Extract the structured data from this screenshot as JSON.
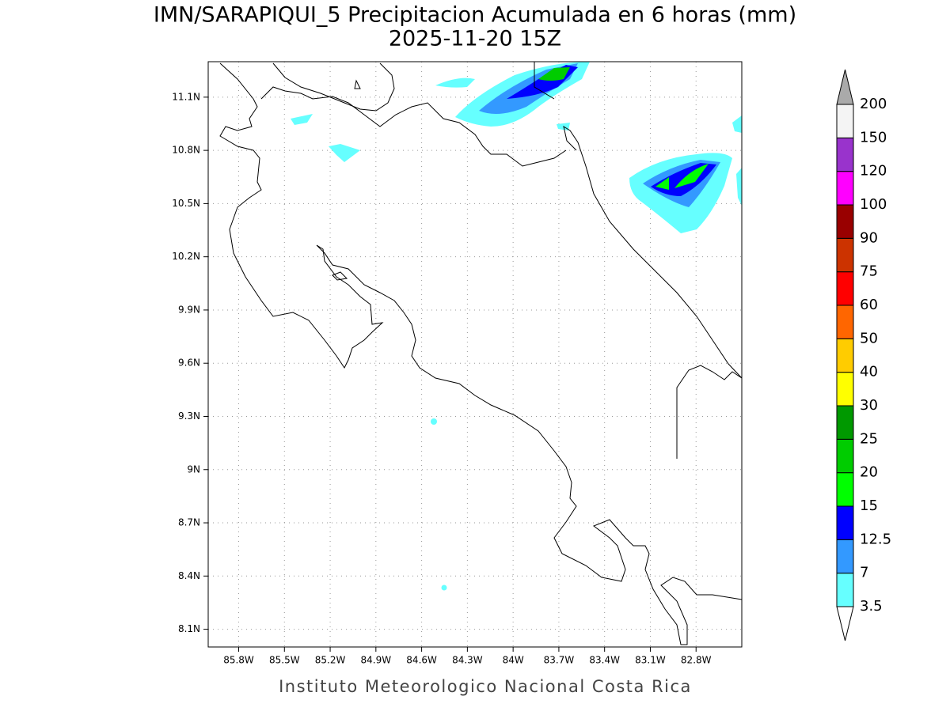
{
  "title": "IMN/SARAPIQUI_5 Precipitacion Acumulada en 6 horas (mm)",
  "subtitle": "2025-11-20 15Z",
  "footer": "Instituto Meteorologico Nacional Costa Rica",
  "map": {
    "xlim": [
      -86.0,
      -82.5
    ],
    "ylim": [
      8.0,
      11.3
    ],
    "xticks": [
      {
        "value": -85.8,
        "label": "85.8W"
      },
      {
        "value": -85.5,
        "label": "85.5W"
      },
      {
        "value": -85.2,
        "label": "85.2W"
      },
      {
        "value": -84.9,
        "label": "84.9W"
      },
      {
        "value": -84.6,
        "label": "84.6W"
      },
      {
        "value": -84.3,
        "label": "84.3W"
      },
      {
        "value": -84.0,
        "label": "84W"
      },
      {
        "value": -83.7,
        "label": "83.7W"
      },
      {
        "value": -83.4,
        "label": "83.4W"
      },
      {
        "value": -83.1,
        "label": "83.1W"
      },
      {
        "value": -82.8,
        "label": "82.8W"
      }
    ],
    "yticks": [
      {
        "value": 8.1,
        "label": "8.1N"
      },
      {
        "value": 8.4,
        "label": "8.4N"
      },
      {
        "value": 8.7,
        "label": "8.7N"
      },
      {
        "value": 9.0,
        "label": "9N"
      },
      {
        "value": 9.3,
        "label": "9.3N"
      },
      {
        "value": 9.6,
        "label": "9.6N"
      },
      {
        "value": 9.9,
        "label": "9.9N"
      },
      {
        "value": 10.2,
        "label": "10.2N"
      },
      {
        "value": 10.5,
        "label": "10.5N"
      },
      {
        "value": 10.8,
        "label": "10.8N"
      },
      {
        "value": 11.1,
        "label": "11.1N"
      }
    ],
    "grid": true
  },
  "colorbar": {
    "levels": [
      3.5,
      7,
      12.5,
      15,
      20,
      25,
      30,
      40,
      50,
      60,
      75,
      90,
      100,
      120,
      150,
      200
    ],
    "colors": [
      "#ffffff",
      "#66ffff",
      "#3399ff",
      "#0000ff",
      "#00ff00",
      "#00cc00",
      "#009900",
      "#ffff00",
      "#ffcc00",
      "#ff6600",
      "#ff0000",
      "#cc3300",
      "#990000",
      "#ff00ff",
      "#9933cc",
      "#f4f4f4",
      "#aaaaaa"
    ]
  }
}
